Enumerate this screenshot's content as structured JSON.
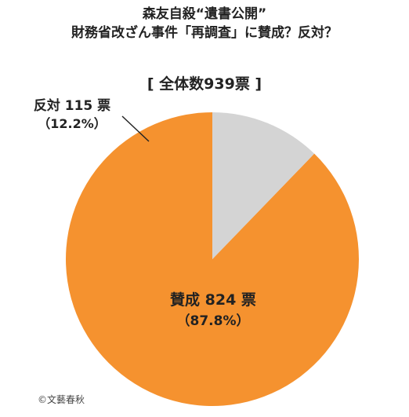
{
  "title_line1": "森友自殺“遺書公開”",
  "title_line2": "財務省改ざん事件「再調査」に賛成？反対？",
  "total_label": "[ 全体数939票 ]",
  "credit": "©文藝春秋",
  "chart_data": {
    "type": "pie",
    "total": 939,
    "slices": [
      {
        "name": "賛成",
        "label": "賛成 824 票",
        "value": 824,
        "percent_label": "（87.8%）",
        "color": "#f5922f"
      },
      {
        "name": "反対",
        "label": "反対 115 票",
        "value": 115,
        "percent_label": "（12.2%）",
        "color": "#d4d4d4"
      }
    ]
  }
}
